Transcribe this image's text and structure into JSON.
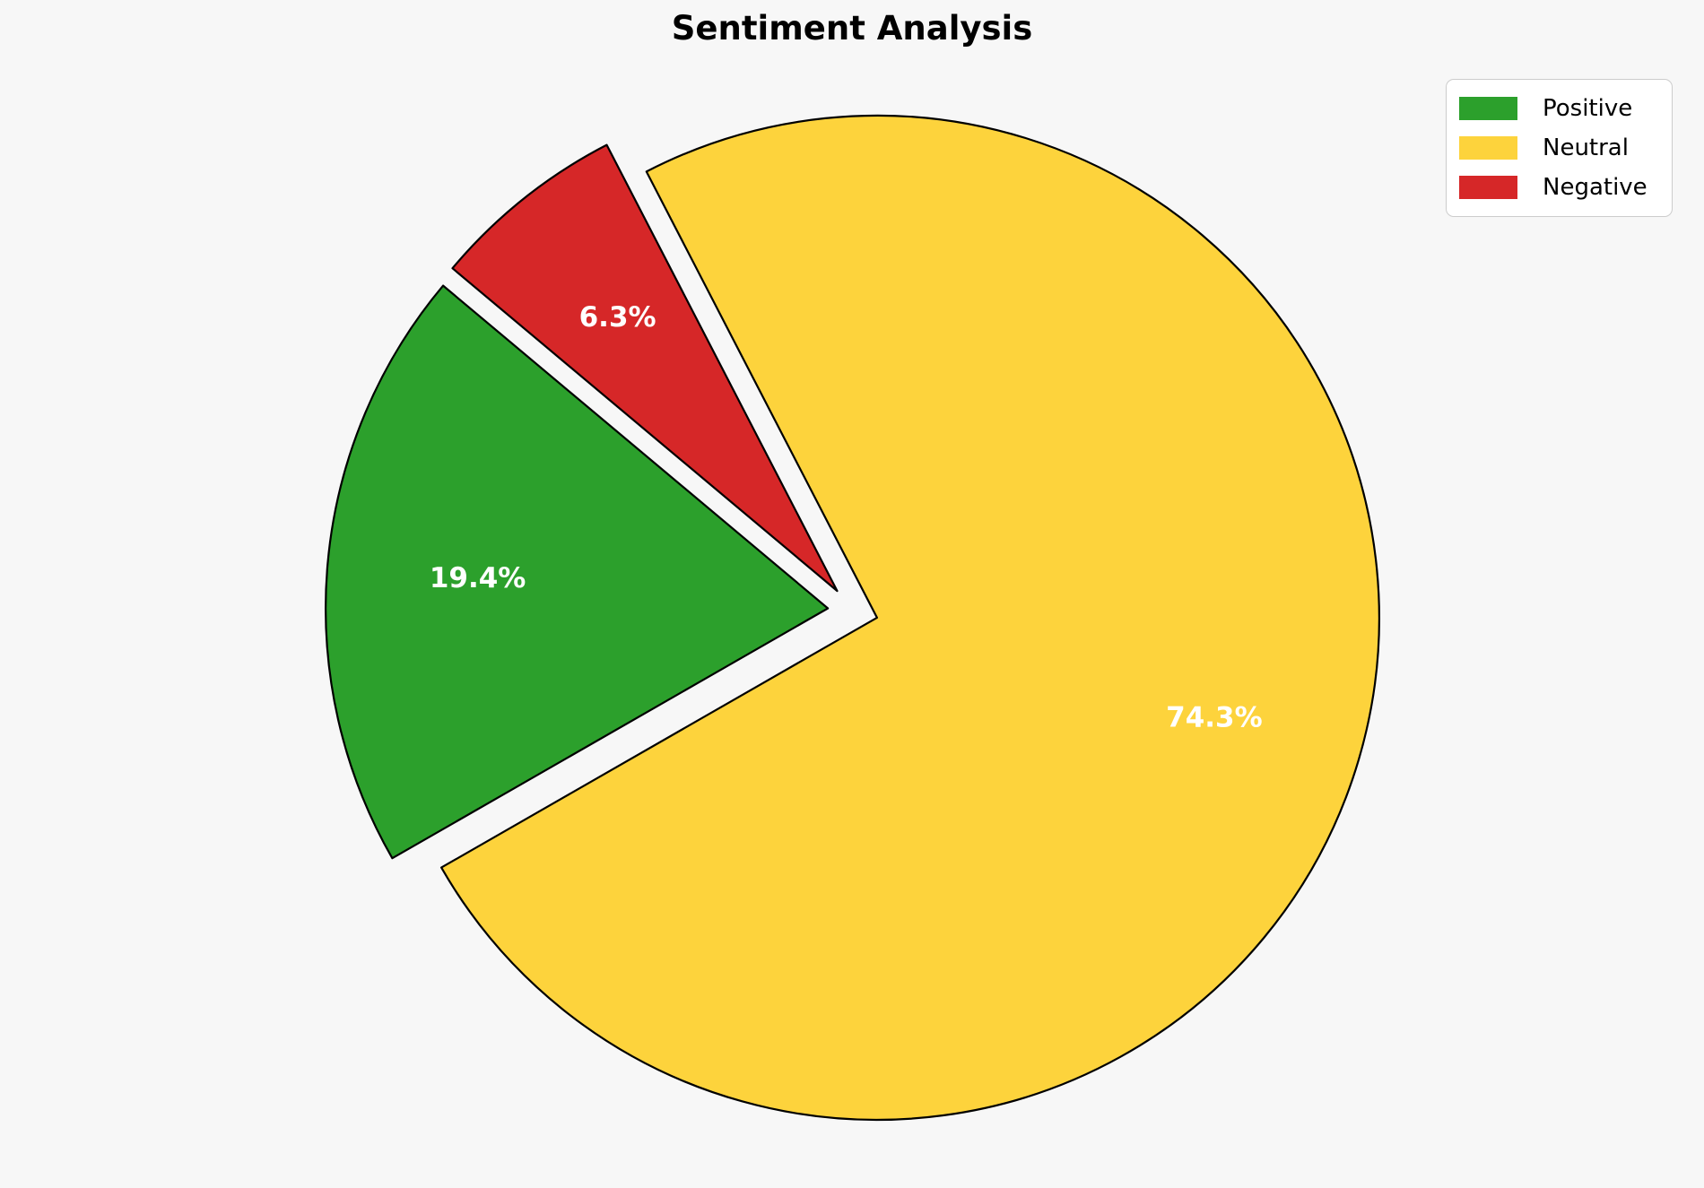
{
  "title": "Sentiment Analysis",
  "background_color": "#f7f7f7",
  "legend": {
    "position": "upper right",
    "items": [
      {
        "label": "Positive",
        "color": "#2ca02c"
      },
      {
        "label": "Neutral",
        "color": "#fdd33c"
      },
      {
        "label": "Negative",
        "color": "#d62728"
      }
    ]
  },
  "chart_data": {
    "type": "pie",
    "title": "Sentiment Analysis",
    "labels": [
      "Positive",
      "Neutral",
      "Negative"
    ],
    "values": [
      19.4,
      74.3,
      6.3
    ],
    "pct_labels": [
      "19.4%",
      "74.3%",
      "6.3%"
    ],
    "colors": [
      "#2ca02c",
      "#fdd33c",
      "#d62728"
    ],
    "start_angle": 140,
    "counterclockwise": true,
    "explode": [
      0.05,
      0.05,
      0.05
    ],
    "pct_distance": 0.7,
    "edge_color": "#000000",
    "pct_label_color": "#ffffff",
    "legend_position": "upper right",
    "grid": false
  }
}
